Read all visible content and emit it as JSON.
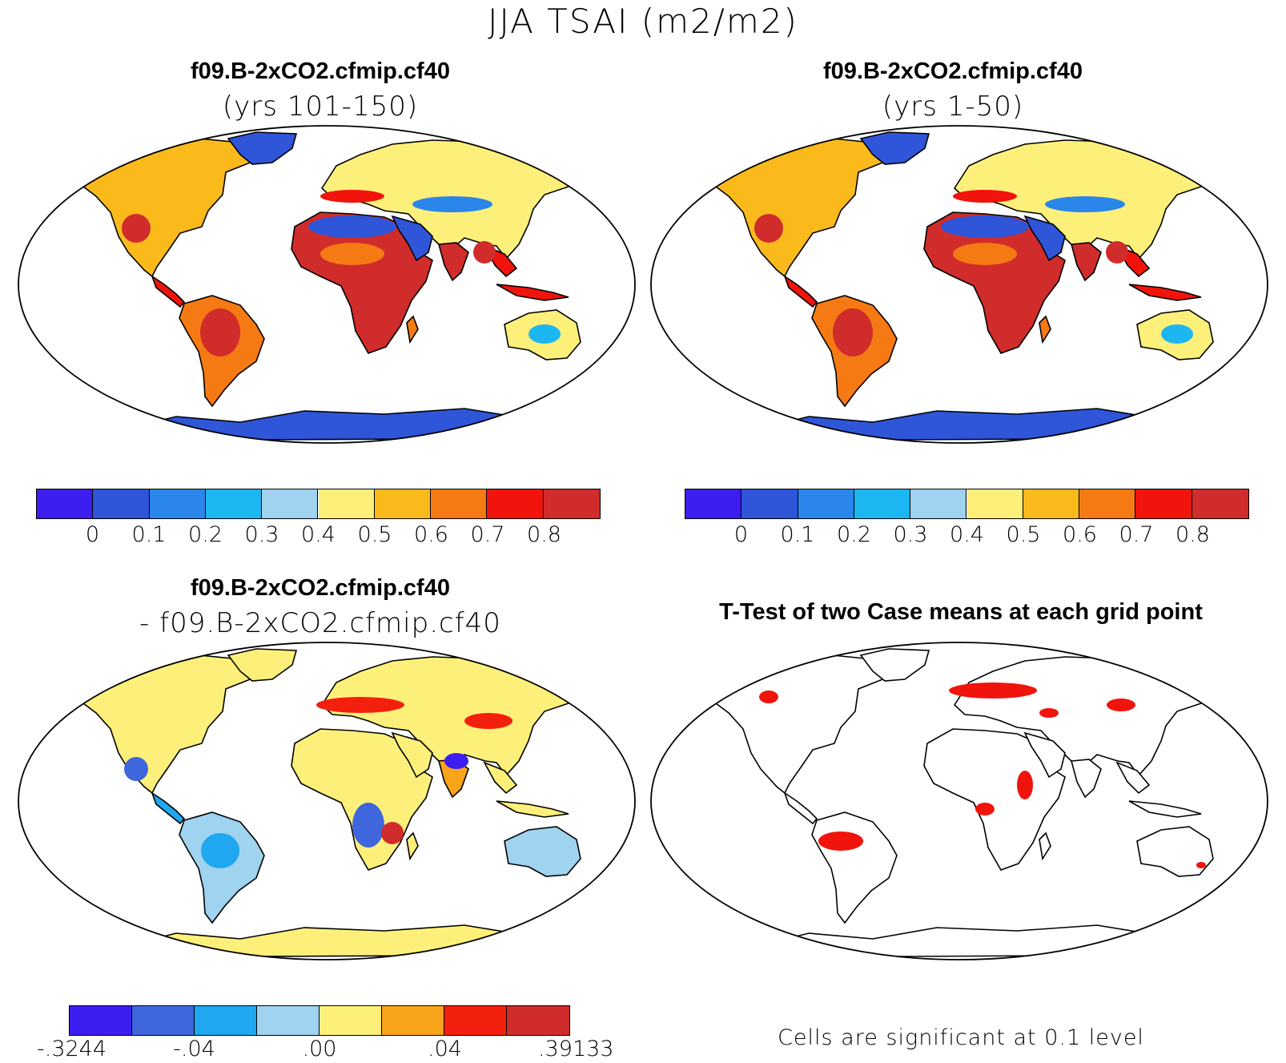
{
  "figure": {
    "title": "JJA TSAI (m2/m2)"
  },
  "panels": {
    "top_left": {
      "title": "f09.B-2xCO2.cfmip.cf40",
      "subtitle": "(yrs 101-150)"
    },
    "top_right": {
      "title": "f09.B-2xCO2.cfmip.cf40",
      "subtitle": "(yrs 1-50)"
    },
    "bottom_left": {
      "title": "f09.B-2xCO2.cfmip.cf40",
      "subtitle": "- f09.B-2xCO2.cfmip.cf40"
    },
    "bottom_right": {
      "title": "T-Test of two Case means at each grid point",
      "note": "Cells are significant at 0.1 level"
    }
  },
  "colorbars": {
    "mean": {
      "colors": [
        "#3c1ef0",
        "#2f55d8",
        "#2a86ea",
        "#1cb7f0",
        "#9fd3ef",
        "#fdf07a",
        "#fbba1c",
        "#f67a14",
        "#f0140c",
        "#d02c2c"
      ],
      "labels": [
        "0",
        "0.1",
        "0.2",
        "0.3",
        "0.4",
        "0.5",
        "0.6",
        "0.7",
        "0.8"
      ]
    },
    "diff": {
      "colors": [
        "#3c1ef0",
        "#3f66dd",
        "#1fa7f0",
        "#9fd3ef",
        "#fdf07a",
        "#f9a41a",
        "#f3200e",
        "#d02c2c"
      ],
      "labels": [
        "-.3244",
        "-.04",
        ".00",
        ".04",
        ".39133"
      ]
    }
  }
}
